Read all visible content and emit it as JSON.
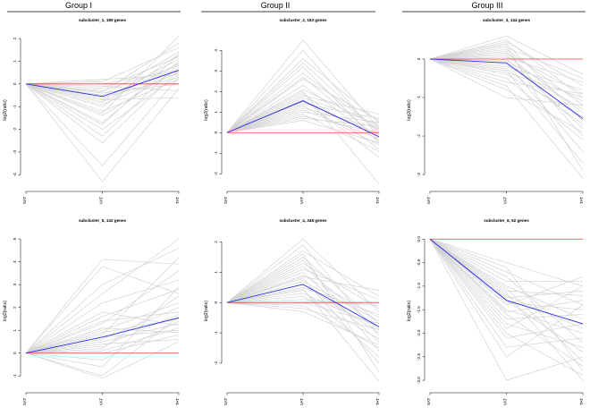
{
  "groups": [
    {
      "title": "Group I"
    },
    {
      "title": "Group II"
    },
    {
      "title": "Group III"
    }
  ],
  "colors": {
    "member_lines": "#d3d3d3",
    "centroid": "#2a2ae8",
    "baseline": "#ff3b3b",
    "axis": "#000000"
  },
  "chart_data": [
    {
      "type": "line",
      "title": "subcluster_1, 189 genes",
      "group": "Group I",
      "categories": [
        "SAT",
        "VAT",
        "TAT"
      ],
      "xlabel": "",
      "ylabel": "log2(ratio)",
      "ylim": [
        -4.5,
        2.2
      ],
      "yticks": [
        -4,
        -3,
        -2,
        -1,
        0,
        1,
        2
      ],
      "centroid": [
        0,
        -0.55,
        0.6
      ],
      "baseline": 0,
      "member_count": 189,
      "member_lines": [
        [
          0,
          -4.3,
          -0.2
        ],
        [
          0,
          -3.6,
          0.3
        ],
        [
          0,
          -2.6,
          0.6
        ],
        [
          0,
          -2.3,
          0.9
        ],
        [
          0,
          -2.0,
          0.4
        ],
        [
          0,
          -1.7,
          1.0
        ],
        [
          0,
          -1.4,
          0.7
        ],
        [
          0,
          -1.2,
          0.2
        ],
        [
          0,
          -1.0,
          1.3
        ],
        [
          0,
          -0.9,
          0.5
        ],
        [
          0,
          -0.8,
          0.9
        ],
        [
          0,
          -0.7,
          1.1
        ],
        [
          0,
          -0.6,
          0.3
        ],
        [
          0,
          -0.5,
          1.4
        ],
        [
          0,
          -0.4,
          0.0
        ],
        [
          0,
          -0.3,
          0.8
        ],
        [
          0,
          -0.2,
          1.2
        ],
        [
          0,
          -0.1,
          -0.3
        ],
        [
          0,
          0.0,
          0.6
        ],
        [
          0,
          0.1,
          1.6
        ],
        [
          0,
          0.2,
          0.4
        ],
        [
          0,
          -1.3,
          2.1
        ],
        [
          0,
          -0.7,
          -0.6
        ],
        [
          0,
          -1.8,
          1.3
        ],
        [
          0,
          -0.35,
          1.8
        ]
      ]
    },
    {
      "type": "line",
      "title": "subcluster_2, 183 genes",
      "group": "Group II",
      "categories": [
        "SAT",
        "VAT",
        "TAT"
      ],
      "xlabel": "",
      "ylabel": "log2(ratio)",
      "ylim": [
        -2.6,
        4.8
      ],
      "yticks": [
        -2,
        -1,
        0,
        1,
        2,
        3,
        4
      ],
      "centroid": [
        0,
        1.55,
        -0.2
      ],
      "baseline": 0,
      "member_count": 183,
      "member_lines": [
        [
          0,
          4.5,
          0.2
        ],
        [
          0,
          4.0,
          -0.2
        ],
        [
          0,
          3.6,
          0.5
        ],
        [
          0,
          3.2,
          -0.5
        ],
        [
          0,
          2.9,
          0.1
        ],
        [
          0,
          2.6,
          0.6
        ],
        [
          0,
          2.3,
          -0.4
        ],
        [
          0,
          2.1,
          0.3
        ],
        [
          0,
          1.9,
          -0.8
        ],
        [
          0,
          1.7,
          0.4
        ],
        [
          0,
          1.5,
          -0.1
        ],
        [
          0,
          1.4,
          0.7
        ],
        [
          0,
          1.3,
          -0.6
        ],
        [
          0,
          1.2,
          0.2
        ],
        [
          0,
          1.1,
          -0.3
        ],
        [
          0,
          1.0,
          0.5
        ],
        [
          0,
          0.9,
          -0.9
        ],
        [
          0,
          0.8,
          0.0
        ],
        [
          0,
          0.7,
          0.3
        ],
        [
          0,
          0.6,
          -0.5
        ],
        [
          0,
          2.0,
          -2.5
        ],
        [
          0,
          1.6,
          -1.2
        ],
        [
          0,
          2.7,
          -0.3
        ],
        [
          0,
          1.8,
          0.9
        ],
        [
          0,
          3.4,
          0.0
        ]
      ]
    },
    {
      "type": "line",
      "title": "subcluster_3, 144 genes",
      "group": "Group III",
      "categories": [
        "SAT",
        "VAT",
        "TAT"
      ],
      "xlabel": "",
      "ylabel": "log2(ratio)",
      "ylim": [
        -3.3,
        0.65
      ],
      "yticks": [
        -3,
        -2,
        -1,
        0
      ],
      "centroid": [
        0,
        -0.1,
        -1.55
      ],
      "baseline": 0,
      "member_count": 144,
      "member_lines": [
        [
          0,
          0.6,
          -0.4
        ],
        [
          0,
          0.5,
          -1.0
        ],
        [
          0,
          0.45,
          -0.7
        ],
        [
          0,
          0.4,
          -1.6
        ],
        [
          0,
          0.3,
          -0.5
        ],
        [
          0,
          0.25,
          -1.2
        ],
        [
          0,
          0.2,
          -2.0
        ],
        [
          0,
          0.15,
          -0.9
        ],
        [
          0,
          0.1,
          -1.4
        ],
        [
          0,
          0.05,
          -0.6
        ],
        [
          0,
          0.0,
          -1.8
        ],
        [
          0,
          -0.05,
          -1.1
        ],
        [
          0,
          -0.1,
          -2.4
        ],
        [
          0,
          -0.15,
          -1.3
        ],
        [
          0,
          -0.2,
          -0.8
        ],
        [
          0,
          -0.25,
          -1.7
        ],
        [
          0,
          -0.3,
          -2.7
        ],
        [
          0,
          -0.35,
          -1.0
        ],
        [
          0,
          -0.4,
          -1.5
        ],
        [
          0,
          -0.5,
          -2.1
        ],
        [
          0,
          -0.6,
          -0.9
        ],
        [
          0,
          -0.7,
          -3.1
        ],
        [
          0,
          -0.8,
          -1.9
        ],
        [
          0,
          -1.0,
          -1.2
        ],
        [
          0,
          0.35,
          -2.9
        ]
      ]
    },
    {
      "type": "line",
      "title": "subcluster_5, 142 genes",
      "group": "Group I",
      "categories": [
        "SAT",
        "VAT",
        "TAT"
      ],
      "xlabel": "",
      "ylabel": "log2(ratio)",
      "ylim": [
        -1.5,
        5.2
      ],
      "yticks": [
        -1,
        0,
        1,
        2,
        3,
        4,
        5
      ],
      "centroid": [
        0,
        0.7,
        1.55
      ],
      "baseline": 0,
      "member_count": 142,
      "member_lines": [
        [
          0,
          4.1,
          3.9
        ],
        [
          0,
          3.8,
          2.6
        ],
        [
          0,
          3.0,
          4.6
        ],
        [
          0,
          2.2,
          3.2
        ],
        [
          0,
          1.8,
          1.2
        ],
        [
          0,
          1.6,
          2.8
        ],
        [
          0,
          1.4,
          1.8
        ],
        [
          0,
          1.3,
          3.6
        ],
        [
          0,
          1.1,
          0.9
        ],
        [
          0,
          1.0,
          2.2
        ],
        [
          0,
          0.9,
          1.5
        ],
        [
          0,
          0.8,
          4.2
        ],
        [
          0,
          0.7,
          1.0
        ],
        [
          0,
          0.6,
          2.0
        ],
        [
          0,
          0.5,
          1.3
        ],
        [
          0,
          0.4,
          0.6
        ],
        [
          0,
          0.3,
          1.7
        ],
        [
          0,
          0.2,
          2.5
        ],
        [
          0,
          0.1,
          1.1
        ],
        [
          0,
          0.0,
          0.8
        ],
        [
          0,
          -0.3,
          1.4
        ],
        [
          0,
          -0.6,
          2.9
        ],
        [
          0,
          -1.0,
          1.6
        ],
        [
          0,
          -1.1,
          0.5
        ],
        [
          0,
          2.6,
          5.0
        ]
      ]
    },
    {
      "type": "line",
      "title": "subcluster_4, 348 genes",
      "group": "Group II",
      "categories": [
        "SAT",
        "VAT",
        "TAT"
      ],
      "xlabel": "",
      "ylabel": "log2(ratio)",
      "ylim": [
        -2.8,
        2.25
      ],
      "yticks": [
        -2,
        -1,
        0,
        1,
        2
      ],
      "centroid": [
        0,
        0.6,
        -0.8
      ],
      "baseline": 0,
      "member_count": 348,
      "member_lines": [
        [
          0,
          2.1,
          -0.3
        ],
        [
          0,
          1.9,
          -1.1
        ],
        [
          0,
          1.7,
          0.2
        ],
        [
          0,
          1.5,
          -0.7
        ],
        [
          0,
          1.4,
          -1.6
        ],
        [
          0,
          1.3,
          -0.2
        ],
        [
          0,
          1.2,
          -0.9
        ],
        [
          0,
          1.1,
          0.1
        ],
        [
          0,
          1.0,
          -1.3
        ],
        [
          0,
          0.9,
          -0.5
        ],
        [
          0,
          0.8,
          -2.0
        ],
        [
          0,
          0.7,
          -0.6
        ],
        [
          0,
          0.6,
          -1.0
        ],
        [
          0,
          0.5,
          -0.4
        ],
        [
          0,
          0.4,
          -1.8
        ],
        [
          0,
          0.3,
          -0.8
        ],
        [
          0,
          0.2,
          -1.2
        ],
        [
          0,
          0.1,
          -0.1
        ],
        [
          0,
          0.0,
          -0.7
        ],
        [
          0,
          -0.1,
          -1.5
        ],
        [
          0,
          -0.2,
          -0.9
        ],
        [
          0,
          -0.3,
          -1.4
        ],
        [
          0,
          0.45,
          -2.6
        ],
        [
          0,
          1.6,
          -2.3
        ],
        [
          0,
          0.85,
          0.4
        ]
      ]
    },
    {
      "type": "line",
      "title": "subcluster_6, 52 genes",
      "group": "Group III",
      "categories": [
        "SAT",
        "VAT",
        "TAT"
      ],
      "xlabel": "",
      "ylabel": "log2(ratio)",
      "ylim": [
        -3.15,
        0.1
      ],
      "yticks": [
        -3.0,
        -2.5,
        -2.0,
        -1.5,
        -1.0,
        -0.5,
        0.0
      ],
      "centroid": [
        0,
        -1.3,
        -1.8
      ],
      "baseline": 0,
      "member_count": 52,
      "member_lines": [
        [
          0,
          -0.5,
          -1.0
        ],
        [
          0,
          -0.6,
          -2.8
        ],
        [
          0,
          -0.7,
          -1.4
        ],
        [
          0,
          -0.8,
          -2.2
        ],
        [
          0,
          -0.9,
          -0.9
        ],
        [
          0,
          -1.0,
          -1.7
        ],
        [
          0,
          -1.05,
          -2.6
        ],
        [
          0,
          -1.1,
          -1.2
        ],
        [
          0,
          -1.15,
          -3.0
        ],
        [
          0,
          -1.2,
          -1.9
        ],
        [
          0,
          -1.25,
          -1.1
        ],
        [
          0,
          -1.3,
          -2.4
        ],
        [
          0,
          -1.35,
          -1.5
        ],
        [
          0,
          -1.4,
          -0.8
        ],
        [
          0,
          -1.5,
          -2.0
        ],
        [
          0,
          -1.55,
          -1.3
        ],
        [
          0,
          -1.6,
          -2.7
        ],
        [
          0,
          -1.7,
          -1.6
        ],
        [
          0,
          -1.8,
          -2.3
        ],
        [
          0,
          -1.9,
          -1.0
        ],
        [
          0,
          -2.0,
          -2.9
        ],
        [
          0,
          -2.1,
          -1.8
        ],
        [
          0,
          -2.3,
          -2.1
        ],
        [
          0,
          -2.5,
          -1.4
        ],
        [
          0,
          -3.0,
          -2.5
        ]
      ]
    }
  ]
}
